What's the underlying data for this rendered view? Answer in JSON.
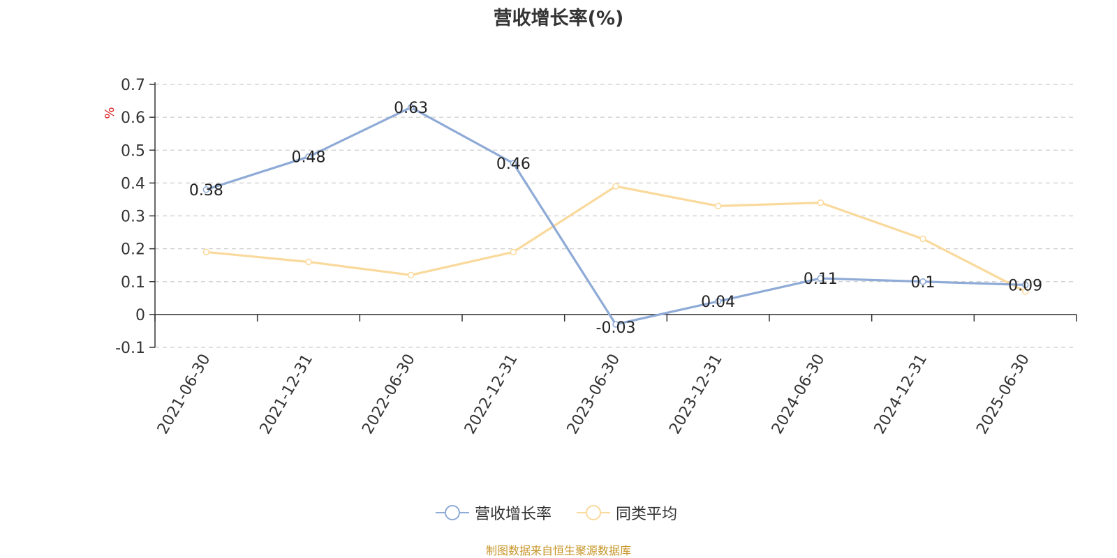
{
  "chart_data": {
    "type": "line",
    "title": "营收增长率(%)",
    "ylabel": "%",
    "xlabel": "",
    "categories": [
      "2021-06-30",
      "2021-12-31",
      "2022-06-30",
      "2022-12-31",
      "2023-06-30",
      "2023-12-31",
      "2024-06-30",
      "2024-12-31",
      "2025-06-30"
    ],
    "y_ticks": [
      -0.1,
      0,
      0.1,
      0.2,
      0.3,
      0.4,
      0.5,
      0.6,
      0.7
    ],
    "y_tick_labels": [
      "-0.1",
      "0",
      "0.1",
      "0.2",
      "0.3",
      "0.4",
      "0.5",
      "0.6",
      "0.7"
    ],
    "ylim": [
      -0.1,
      0.7
    ],
    "grid": true,
    "legend_position": "bottom",
    "series": [
      {
        "name": "营收增长率",
        "color": "#8eaad6",
        "values": [
          0.38,
          0.48,
          0.63,
          0.46,
          -0.03,
          0.04,
          0.11,
          0.1,
          0.09
        ],
        "labels": [
          "0.38",
          "0.48",
          "0.63",
          "0.46",
          "-0.03",
          "0.04",
          "0.11",
          "0.1",
          "0.09"
        ],
        "show_labels": true
      },
      {
        "name": "同类平均",
        "color": "#fad99c",
        "values": [
          0.19,
          0.16,
          0.12,
          0.19,
          0.39,
          0.33,
          0.34,
          0.23,
          0.07
        ],
        "show_labels": false
      }
    ]
  },
  "footer": {
    "source": "制图数据来自恒生聚源数据库"
  }
}
